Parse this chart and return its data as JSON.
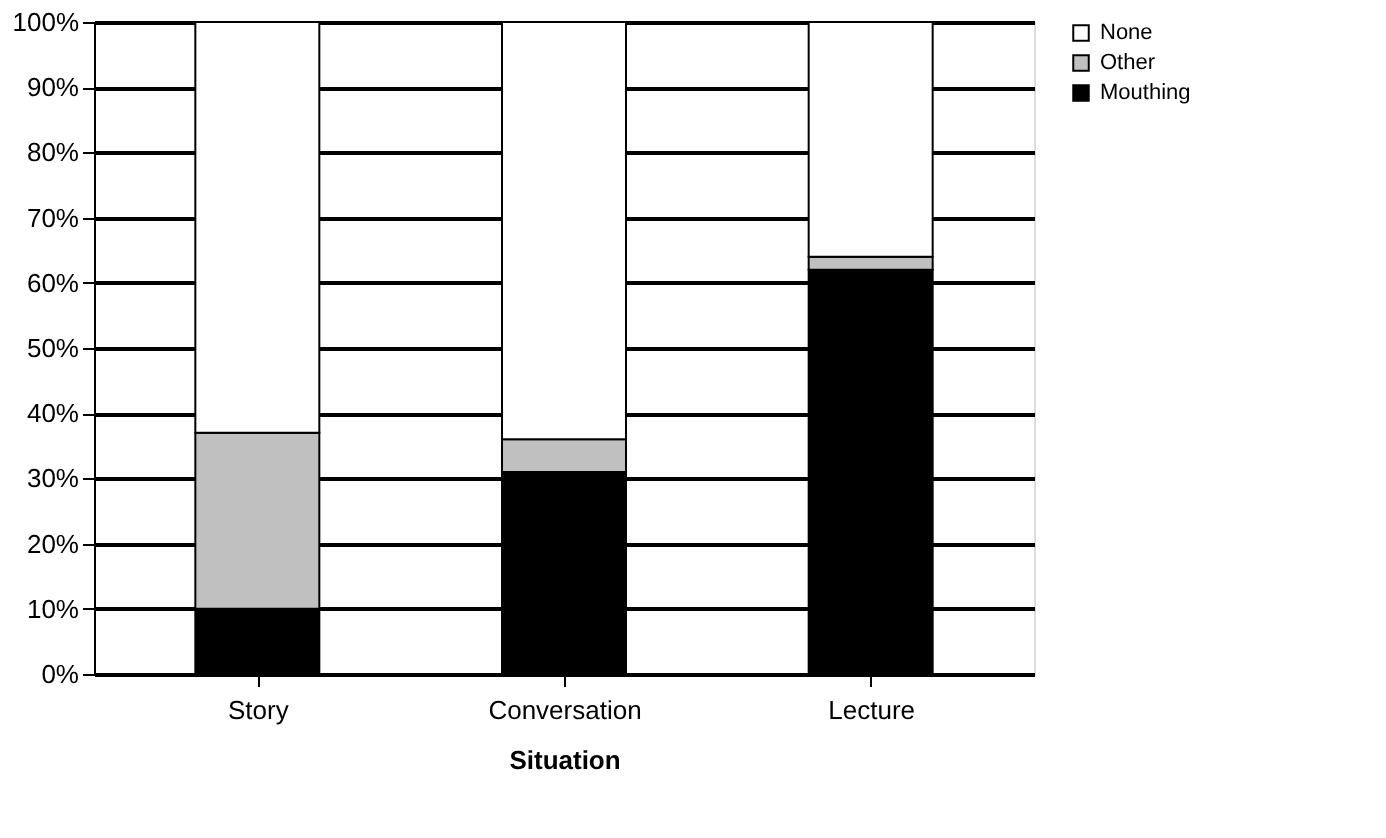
{
  "chart_data": {
    "type": "bar",
    "stacked": true,
    "xlabel": "Situation",
    "categories": [
      "Story",
      "Conversation",
      "Lecture"
    ],
    "series": [
      {
        "name": "Mouthing",
        "color": "#000000",
        "values": [
          10,
          31,
          62
        ]
      },
      {
        "name": "Other",
        "color": "#c0c0c0",
        "values": [
          27,
          5,
          2
        ]
      },
      {
        "name": "None",
        "color": "#ffffff",
        "values": [
          63,
          64,
          36
        ]
      }
    ],
    "ylim": [
      0,
      100
    ],
    "yticks": [
      {
        "value": 0,
        "label": "0%"
      },
      {
        "value": 10,
        "label": "10%"
      },
      {
        "value": 20,
        "label": "20%"
      },
      {
        "value": 30,
        "label": "30%"
      },
      {
        "value": 40,
        "label": "40%"
      },
      {
        "value": 50,
        "label": "50%"
      },
      {
        "value": 60,
        "label": "60%"
      },
      {
        "value": 70,
        "label": "70%"
      },
      {
        "value": 80,
        "label": "80%"
      },
      {
        "value": 90,
        "label": "90%"
      },
      {
        "value": 100,
        "label": "100%"
      }
    ],
    "grid": "y",
    "legend": "right"
  }
}
